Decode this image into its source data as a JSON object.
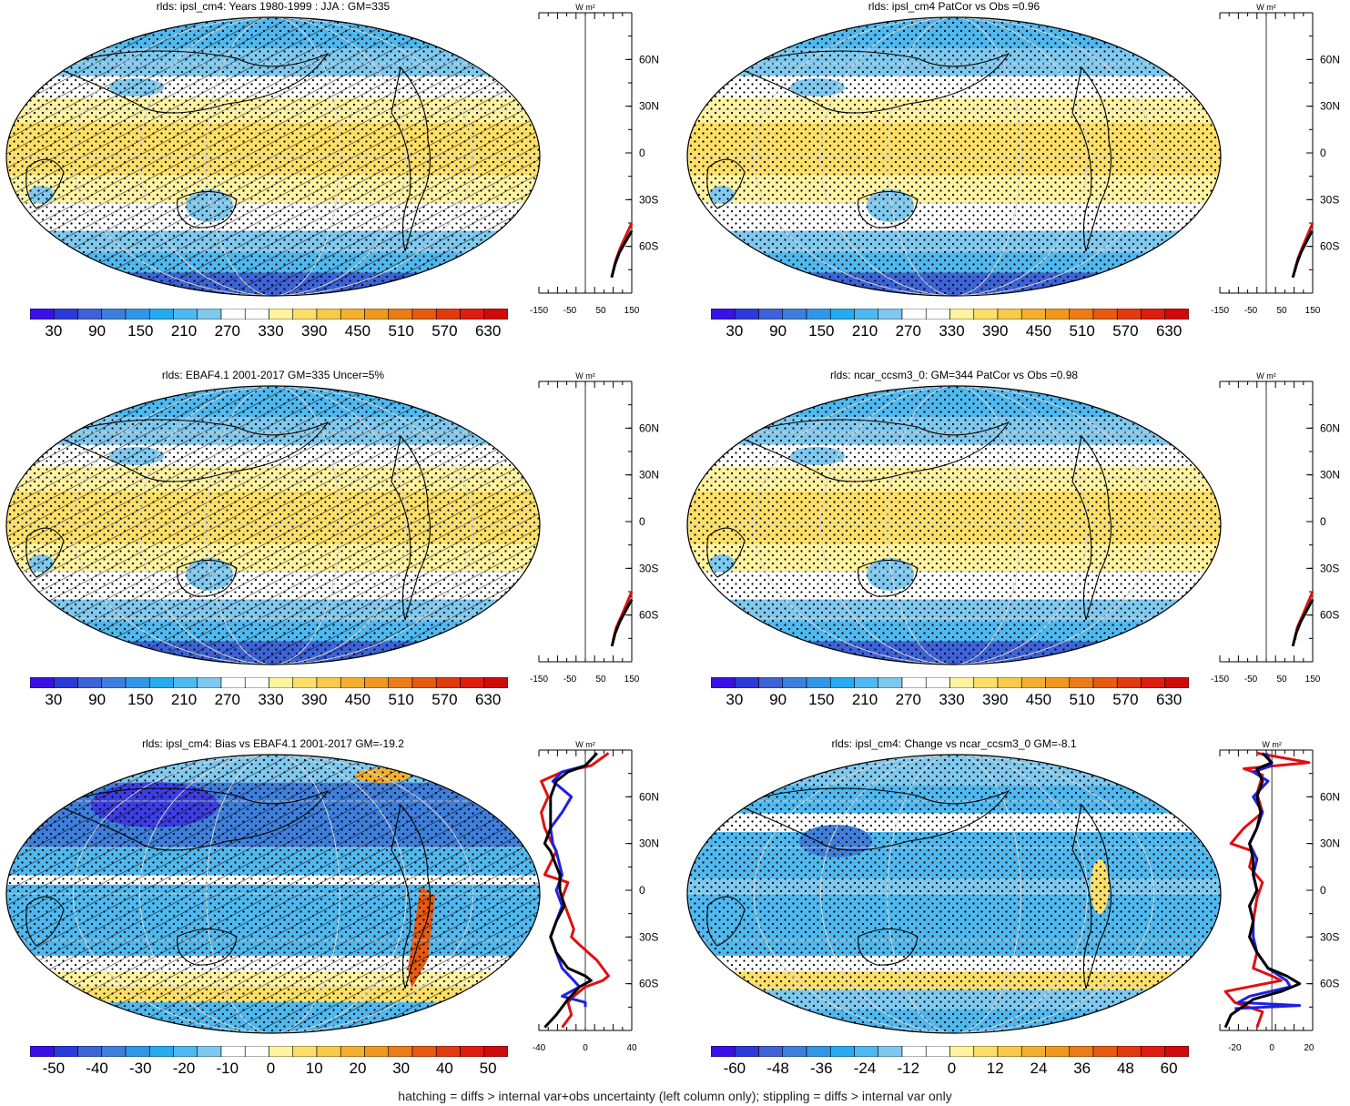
{
  "footnote": "hatching = diffs > internal var+obs uncertainty (left column only); stippling = diffs > internal var only",
  "palette_abs": [
    "#3a10e6",
    "#2b3ad9",
    "#3d63d6",
    "#3f7fdc",
    "#3296e6",
    "#26aaf0",
    "#4fb8ee",
    "#7fc8ee",
    "#ffffff",
    "#ffffff",
    "#fff2a0",
    "#fbdf68",
    "#f7ca4a",
    "#f3b030",
    "#ef9820",
    "#ea7d18",
    "#e65a12",
    "#e23a10",
    "#de1c10",
    "#d00a0a"
  ],
  "palette_diff": [
    "#3a10e6",
    "#2b3ad9",
    "#3d63d6",
    "#3f7fdc",
    "#3296e6",
    "#26aaf0",
    "#4fb8ee",
    "#7fc8ee",
    "#ffffff",
    "#ffffff",
    "#fff2a0",
    "#fbdf68",
    "#f7ca4a",
    "#f3b030",
    "#ef9820",
    "#ea7d18",
    "#e65a12",
    "#e23a10",
    "#de1c10",
    "#d00a0a"
  ],
  "panels": [
    {
      "title": "rlds: ipsl_cm4: Years 1980-1999 : JJA : GM=335",
      "map_kind": "abs",
      "hatched": true,
      "colorbar_labels": [
        "30",
        "90",
        "150",
        "210",
        "270",
        "330",
        "390",
        "450",
        "510",
        "570",
        "630"
      ],
      "profile": {
        "unit": "W m²",
        "x_ticks": [
          "-150",
          "-50",
          "50",
          "150"
        ],
        "xlim": [
          -150,
          150
        ],
        "lat_labels": [
          "60N",
          "30N",
          "0",
          "30S",
          "60S"
        ],
        "series": [
          {
            "color": "#e01010",
            "points": [
              [
                150,
                -45
              ],
              [
                115,
                -60
              ],
              [
                100,
                -68
              ],
              [
                90,
                -76
              ]
            ]
          },
          {
            "color": "#000000",
            "points": [
              [
                150,
                -50
              ],
              [
                110,
                -64
              ],
              [
                95,
                -72
              ],
              [
                85,
                -80
              ]
            ]
          }
        ]
      }
    },
    {
      "title": "rlds: ipsl_cm4 PatCor vs Obs =0.96",
      "map_kind": "abs",
      "hatched": false,
      "colorbar_labels": [
        "30",
        "90",
        "150",
        "210",
        "270",
        "330",
        "390",
        "450",
        "510",
        "570",
        "630"
      ],
      "profile": {
        "unit": "W m²",
        "x_ticks": [
          "-150",
          "-50",
          "50",
          "150"
        ],
        "xlim": [
          -150,
          150
        ],
        "lat_labels": [
          "60N",
          "30N",
          "0",
          "30S",
          "60S"
        ],
        "series": [
          {
            "color": "#e01010",
            "points": [
              [
                150,
                -45
              ],
              [
                118,
                -60
              ],
              [
                102,
                -68
              ],
              [
                92,
                -76
              ]
            ]
          },
          {
            "color": "#000000",
            "points": [
              [
                148,
                -50
              ],
              [
                112,
                -64
              ],
              [
                97,
                -72
              ],
              [
                86,
                -80
              ]
            ]
          }
        ]
      }
    },
    {
      "title": "rlds: EBAF4.1 2001-2017 GM=335 Uncer=5%",
      "map_kind": "abs",
      "hatched": true,
      "colorbar_labels": [
        "30",
        "90",
        "150",
        "210",
        "270",
        "330",
        "390",
        "450",
        "510",
        "570",
        "630"
      ],
      "profile": {
        "unit": "W m²",
        "x_ticks": [
          "-150",
          "-50",
          "50",
          "150"
        ],
        "xlim": [
          -150,
          150
        ],
        "lat_labels": [
          "60N",
          "30N",
          "0",
          "30S",
          "60S"
        ],
        "series": [
          {
            "color": "#e01010",
            "points": [
              [
                150,
                -45
              ],
              [
                118,
                -60
              ],
              [
                100,
                -68
              ],
              [
                90,
                -76
              ]
            ]
          },
          {
            "color": "#000000",
            "points": [
              [
                150,
                -50
              ],
              [
                112,
                -64
              ],
              [
                96,
                -72
              ],
              [
                86,
                -80
              ]
            ]
          }
        ]
      }
    },
    {
      "title": "rlds: ncar_ccsm3_0: GM=344 PatCor vs Obs =0.98",
      "map_kind": "abs",
      "hatched": false,
      "colorbar_labels": [
        "30",
        "90",
        "150",
        "210",
        "270",
        "330",
        "390",
        "450",
        "510",
        "570",
        "630"
      ],
      "profile": {
        "unit": "W m²",
        "x_ticks": [
          "-150",
          "-50",
          "50",
          "150"
        ],
        "xlim": [
          -150,
          150
        ],
        "lat_labels": [
          "60N",
          "30N",
          "0",
          "30S",
          "60S"
        ],
        "series": [
          {
            "color": "#e01010",
            "points": [
              [
                150,
                -45
              ],
              [
                118,
                -60
              ],
              [
                100,
                -68
              ],
              [
                92,
                -76
              ]
            ]
          },
          {
            "color": "#000000",
            "points": [
              [
                150,
                -50
              ],
              [
                112,
                -64
              ],
              [
                96,
                -72
              ],
              [
                86,
                -80
              ]
            ]
          }
        ]
      }
    },
    {
      "title": "rlds: ipsl_cm4: Bias vs EBAF4.1 2001-2017 GM=-19.2",
      "map_kind": "bias",
      "hatched": true,
      "colorbar_labels": [
        "-50",
        "-40",
        "-30",
        "-20",
        "-10",
        "0",
        "10",
        "20",
        "30",
        "40",
        "50"
      ],
      "profile": {
        "unit": "W m²",
        "x_ticks": [
          "-40",
          "0",
          "40"
        ],
        "xlim": [
          -40,
          40
        ],
        "lat_labels": [
          "60N",
          "30N",
          "0",
          "30S",
          "60S"
        ],
        "series": [
          {
            "color": "#e01010",
            "points": [
              [
                20,
                88
              ],
              [
                5,
                80
              ],
              [
                -20,
                76
              ],
              [
                -38,
                70
              ],
              [
                -32,
                60
              ],
              [
                -38,
                50
              ],
              [
                -35,
                40
              ],
              [
                -30,
                32
              ],
              [
                -25,
                25
              ],
              [
                -35,
                10
              ],
              [
                -15,
                5
              ],
              [
                -20,
                -5
              ],
              [
                -15,
                -15
              ],
              [
                -10,
                -25
              ],
              [
                -12,
                -30
              ],
              [
                -5,
                -35
              ],
              [
                10,
                -45
              ],
              [
                20,
                -55
              ],
              [
                15,
                -58
              ],
              [
                0,
                -62
              ],
              [
                -10,
                -68
              ],
              [
                -15,
                -72
              ],
              [
                -12,
                -80
              ],
              [
                -20,
                -88
              ]
            ]
          },
          {
            "color": "#2020e0",
            "points": [
              [
                10,
                88
              ],
              [
                0,
                80
              ],
              [
                -20,
                76
              ],
              [
                -28,
                70
              ],
              [
                -12,
                60
              ],
              [
                -20,
                50
              ],
              [
                -30,
                40
              ],
              [
                -28,
                30
              ],
              [
                -25,
                25
              ],
              [
                -20,
                10
              ],
              [
                -25,
                0
              ],
              [
                -20,
                -10
              ],
              [
                -25,
                -20
              ],
              [
                -30,
                -30
              ],
              [
                -25,
                -40
              ],
              [
                -20,
                -50
              ],
              [
                -10,
                -58
              ],
              [
                -5,
                -62
              ],
              [
                -20,
                -68
              ],
              [
                0,
                -72
              ],
              [
                0,
                -75
              ]
            ]
          },
          {
            "color": "#000000",
            "points": [
              [
                10,
                88
              ],
              [
                0,
                80
              ],
              [
                -15,
                76
              ],
              [
                -25,
                70
              ],
              [
                -30,
                60
              ],
              [
                -30,
                50
              ],
              [
                -30,
                40
              ],
              [
                -35,
                30
              ],
              [
                -30,
                25
              ],
              [
                -22,
                10
              ],
              [
                -22,
                0
              ],
              [
                -18,
                -10
              ],
              [
                -25,
                -20
              ],
              [
                -30,
                -30
              ],
              [
                -25,
                -40
              ],
              [
                -15,
                -50
              ],
              [
                0,
                -55
              ],
              [
                5,
                -58
              ],
              [
                -5,
                -62
              ],
              [
                -15,
                -70
              ],
              [
                -25,
                -80
              ],
              [
                -35,
                -88
              ]
            ]
          }
        ]
      }
    },
    {
      "title": "rlds: ipsl_cm4: Change vs ncar_ccsm3_0 GM=-8.1",
      "map_kind": "change",
      "hatched": false,
      "colorbar_labels": [
        "-60",
        "-48",
        "-36",
        "-24",
        "-12",
        "0",
        "12",
        "24",
        "36",
        "48",
        "60"
      ],
      "profile": {
        "unit": "W m²",
        "x_ticks": [
          "-20",
          "0",
          "20"
        ],
        "xlim": [
          -28,
          22
        ],
        "lat_labels": [
          "60N",
          "30N",
          "0",
          "30S",
          "60S"
        ],
        "series": [
          {
            "color": "#e01010",
            "points": [
              [
                -8,
                88
              ],
              [
                20,
                82
              ],
              [
                -15,
                78
              ],
              [
                -5,
                74
              ],
              [
                -8,
                62
              ],
              [
                -5,
                50
              ],
              [
                -15,
                40
              ],
              [
                -22,
                30
              ],
              [
                -10,
                25
              ],
              [
                -12,
                15
              ],
              [
                -5,
                5
              ],
              [
                -8,
                -5
              ],
              [
                -10,
                -20
              ],
              [
                -12,
                -30
              ],
              [
                -8,
                -40
              ],
              [
                -10,
                -50
              ],
              [
                0,
                -55
              ],
              [
                5,
                -58
              ],
              [
                -25,
                -65
              ],
              [
                -20,
                -72
              ],
              [
                -5,
                -78
              ],
              [
                -8,
                -88
              ]
            ]
          },
          {
            "color": "#2020e0",
            "points": [
              [
                -3,
                88
              ],
              [
                0,
                80
              ],
              [
                -10,
                76
              ],
              [
                -2,
                70
              ],
              [
                -10,
                60
              ],
              [
                -5,
                50
              ],
              [
                -8,
                40
              ],
              [
                -12,
                30
              ],
              [
                -8,
                20
              ],
              [
                -10,
                10
              ],
              [
                -8,
                0
              ],
              [
                -12,
                -10
              ],
              [
                -10,
                -20
              ],
              [
                -10,
                -30
              ],
              [
                -8,
                -40
              ],
              [
                -2,
                -50
              ],
              [
                8,
                -58
              ],
              [
                10,
                -62
              ],
              [
                -12,
                -68
              ],
              [
                -18,
                -72
              ],
              [
                15,
                -74
              ],
              [
                -20,
                -76
              ]
            ]
          },
          {
            "color": "#000000",
            "points": [
              [
                -5,
                88
              ],
              [
                0,
                82
              ],
              [
                -8,
                78
              ],
              [
                -5,
                70
              ],
              [
                -8,
                60
              ],
              [
                -6,
                50
              ],
              [
                -8,
                40
              ],
              [
                -12,
                30
              ],
              [
                -10,
                20
              ],
              [
                -10,
                10
              ],
              [
                -8,
                0
              ],
              [
                -12,
                -10
              ],
              [
                -10,
                -20
              ],
              [
                -12,
                -30
              ],
              [
                -8,
                -40
              ],
              [
                -2,
                -50
              ],
              [
                8,
                -55
              ],
              [
                15,
                -60
              ],
              [
                5,
                -65
              ],
              [
                -10,
                -70
              ],
              [
                -22,
                -80
              ],
              [
                -25,
                -88
              ]
            ]
          }
        ]
      }
    }
  ]
}
